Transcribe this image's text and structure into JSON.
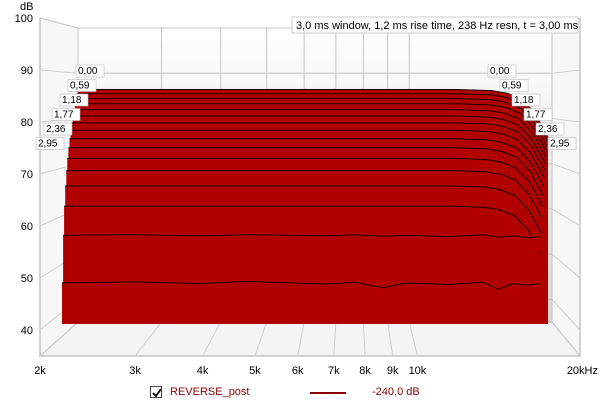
{
  "chart_data": {
    "type": "area",
    "title": "3,0 ms window, 1,2 ms rise time,  238 Hz resn, t = 3,00 ms",
    "ylabel": "dB",
    "xlabel": "",
    "x_scale": "log",
    "xlim": [
      2000,
      20000
    ],
    "ylim": [
      35,
      100
    ],
    "grid": true,
    "x_ticks": [
      "2k",
      "3k",
      "4k",
      "5k",
      "6k",
      "7k",
      "8k",
      "9k",
      "10k",
      "20kHz"
    ],
    "x_tick_values": [
      2000,
      3000,
      4000,
      5000,
      6000,
      7000,
      8000,
      9000,
      10000,
      20000
    ],
    "y_ticks": [
      "40",
      "50",
      "60",
      "70",
      "80",
      "90",
      "100"
    ],
    "y_tick_values": [
      40,
      50,
      60,
      70,
      80,
      90,
      100
    ],
    "time_slices_ms": [
      "0,00",
      "0,59",
      "1,18",
      "1,77",
      "2,36",
      "2,95"
    ],
    "x_points": [
      2200,
      3000,
      4000,
      5000,
      6000,
      7000,
      8000,
      9000,
      10000,
      12000,
      14000,
      15000,
      16000,
      17000,
      18000
    ],
    "series": [
      {
        "values": [
          85,
          85,
          85,
          85,
          85,
          85,
          85,
          85,
          85,
          85,
          84.8,
          84.3,
          83.2,
          80.5,
          76
        ]
      },
      {
        "values": [
          84.2,
          84.2,
          84.2,
          84.2,
          84.2,
          84.2,
          84.2,
          84.2,
          84.2,
          84.2,
          84,
          83.5,
          82.4,
          79.7,
          75.2
        ]
      },
      {
        "values": [
          83.3,
          83.3,
          83.3,
          83.3,
          83.3,
          83.3,
          83.3,
          83.3,
          83.3,
          83.3,
          83.1,
          82.6,
          81.5,
          78.8,
          74.3
        ]
      },
      {
        "values": [
          82.3,
          82.3,
          82.3,
          82.3,
          82.3,
          82.3,
          82.3,
          82.3,
          82.3,
          82.3,
          82.1,
          81.6,
          80.5,
          77.8,
          73.3
        ]
      },
      {
        "values": [
          81.2,
          81.2,
          81.2,
          81.2,
          81.2,
          81.2,
          81.2,
          81.2,
          81.2,
          81.2,
          81,
          80.5,
          79.4,
          76.7,
          72.2
        ]
      },
      {
        "values": [
          80,
          80,
          80,
          80,
          80,
          80,
          80,
          80,
          80,
          80,
          79.8,
          79.3,
          78.2,
          75.5,
          71
        ]
      },
      {
        "values": [
          78.7,
          78.7,
          78.7,
          78.7,
          78.7,
          78.7,
          78.7,
          78.7,
          78.7,
          78.7,
          78.5,
          78,
          76.9,
          74.2,
          69.7
        ]
      },
      {
        "values": [
          77.3,
          77.3,
          77.3,
          77.3,
          77.3,
          77.3,
          77.3,
          77.3,
          77.3,
          77.3,
          77.1,
          76.6,
          75.5,
          72.8,
          68.3
        ]
      },
      {
        "values": [
          75.7,
          75.7,
          75.7,
          75.7,
          75.7,
          75.7,
          75.7,
          75.7,
          75.7,
          75.7,
          75.5,
          75,
          73.9,
          71.2,
          66.7
        ]
      },
      {
        "values": [
          74,
          74,
          74,
          74,
          74,
          74,
          74,
          74,
          74,
          74,
          73.8,
          73.3,
          72.2,
          69.5,
          65
        ]
      },
      {
        "values": [
          72,
          72,
          72,
          72,
          72,
          72,
          72,
          72,
          72,
          72,
          71.8,
          71.3,
          70.2,
          67.5,
          63
        ]
      },
      {
        "values": [
          69.7,
          69.7,
          69.7,
          69.7,
          69.7,
          69.7,
          69.7,
          69.7,
          69.7,
          69.7,
          69.5,
          69,
          67.9,
          65.2,
          60.7
        ]
      },
      {
        "values": [
          66.8,
          66.8,
          66.8,
          66.8,
          66.8,
          66.8,
          66.8,
          66.8,
          66.8,
          66.8,
          66.6,
          66.1,
          65,
          62.3,
          57.8
        ]
      },
      {
        "values": [
          63,
          63,
          63,
          63,
          63,
          63,
          63,
          63,
          63,
          63,
          62.8,
          62.3,
          61.2,
          58.5,
          54
        ]
      },
      {
        "values": [
          57.5,
          57.6,
          57.4,
          57.6,
          57.5,
          57.4,
          57.6,
          57.3,
          57.5,
          57.2,
          57.6,
          57.1,
          57.4,
          57,
          57.2
        ]
      },
      {
        "values": [
          48.5,
          48.7,
          48.4,
          48.8,
          48.5,
          48.3,
          48.6,
          47.6,
          48.5,
          48.2,
          48.6,
          47.3,
          48.4,
          48.1,
          48.3
        ]
      }
    ]
  },
  "legend": {
    "series_name": "REVERSE_post",
    "value": "-240,0 dB",
    "color": "#8b0000",
    "checked": true
  }
}
